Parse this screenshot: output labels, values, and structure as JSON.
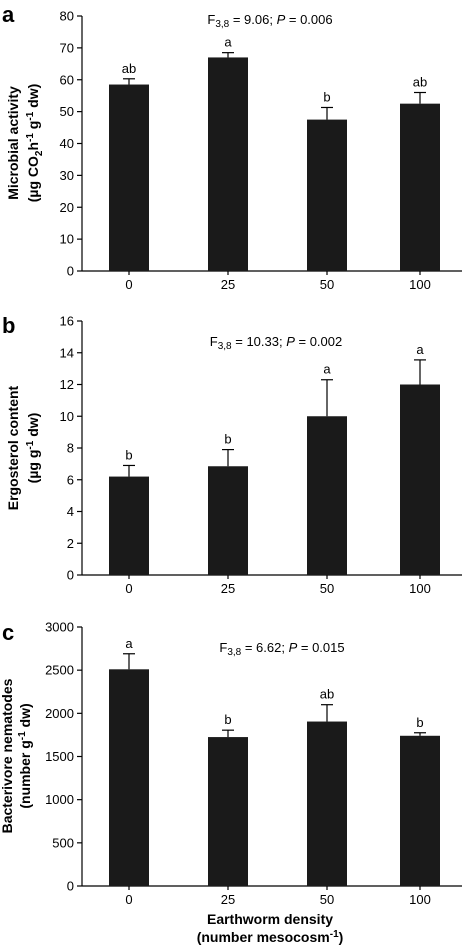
{
  "chart_data": [
    {
      "type": "bar",
      "panel": "a",
      "categories": [
        "0",
        "25",
        "50",
        "100"
      ],
      "values": [
        58.5,
        67,
        47.5,
        52.5
      ],
      "errors": [
        1.8,
        1.5,
        3.8,
        3.5
      ],
      "sig_letters": [
        "ab",
        "a",
        "b",
        "ab"
      ],
      "ylim": [
        0,
        80
      ],
      "yticks": [
        0,
        10,
        20,
        30,
        40,
        50,
        60,
        70,
        80
      ],
      "ylabel_line1": "Microbial activity",
      "ylabel_line2_pre": "(µg CO",
      "ylabel_line2_sub": "2",
      "ylabel_line2_mid": "h",
      "ylabel_line2_sup1": "-1",
      "ylabel_line2_mid2": " g",
      "ylabel_line2_sup2": "-1",
      "ylabel_line2_post": " dw)",
      "stat_pre": "F",
      "stat_sub": "3,8",
      "stat_mid": " = 9.06; ",
      "stat_p": "P",
      "stat_post": " = 0.006"
    },
    {
      "type": "bar",
      "panel": "b",
      "categories": [
        "0",
        "25",
        "50",
        "100"
      ],
      "values": [
        6.2,
        6.85,
        10,
        12
      ],
      "errors": [
        0.7,
        1.05,
        2.3,
        1.55
      ],
      "sig_letters": [
        "b",
        "b",
        "a",
        "a"
      ],
      "ylim": [
        0,
        16
      ],
      "yticks": [
        0,
        2,
        4,
        6,
        8,
        10,
        12,
        14,
        16
      ],
      "ylabel_line1": "Ergosterol content",
      "ylabel_line2_pre": "(µg g",
      "ylabel_line2_sup": "-1",
      "ylabel_line2_post": " dw)",
      "stat_pre": "F",
      "stat_sub": "3,8",
      "stat_mid": " = 10.33; ",
      "stat_p": "P",
      "stat_post": " = 0.002"
    },
    {
      "type": "bar",
      "panel": "c",
      "categories": [
        "0",
        "25",
        "50",
        "100"
      ],
      "values": [
        2510,
        1725,
        1905,
        1740
      ],
      "errors": [
        180,
        80,
        195,
        35
      ],
      "sig_letters": [
        "a",
        "b",
        "ab",
        "b"
      ],
      "ylim": [
        0,
        3000
      ],
      "yticks": [
        0,
        500,
        1000,
        1500,
        2000,
        2500,
        3000
      ],
      "ylabel_line1": "Bacterivore nematodes",
      "ylabel_line2_pre": "(number g",
      "ylabel_line2_sup": "-1",
      "ylabel_line2_post": " dw)",
      "stat_pre": "F",
      "stat_sub": "3,8",
      "stat_mid": " = 6.62; ",
      "stat_p": "P",
      "stat_post": " = 0.015",
      "xlabel_line1": "Earthworm density",
      "xlabel_line2_pre": "(number mesocosm",
      "xlabel_line2_sup": "-1",
      "xlabel_line2_post": ")"
    }
  ]
}
